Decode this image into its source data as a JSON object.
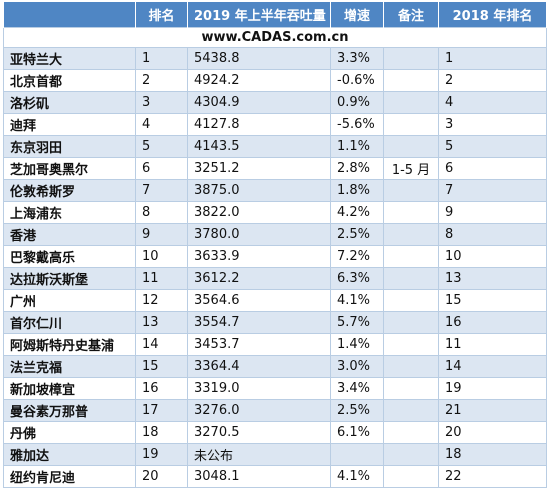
{
  "header": {
    "name": "",
    "rank": "排名",
    "volume": "2019 年上半年吞吐量",
    "growth": "增速",
    "note": "备注",
    "prev_rank": "2018 年排名"
  },
  "watermark": "www.CADAS.com.cn",
  "rows": [
    {
      "name": "亚特兰大",
      "rank": "1",
      "volume": "5438.8",
      "growth": "3.3%",
      "note": "",
      "prev": "1"
    },
    {
      "name": "北京首都",
      "rank": "2",
      "volume": "4924.2",
      "growth": "-0.6%",
      "note": "",
      "prev": "2"
    },
    {
      "name": "洛杉矶",
      "rank": "3",
      "volume": "4304.9",
      "growth": "0.9%",
      "note": "",
      "prev": "4"
    },
    {
      "name": "迪拜",
      "rank": "4",
      "volume": "4127.8",
      "growth": "-5.6%",
      "note": "",
      "prev": "3"
    },
    {
      "name": "东京羽田",
      "rank": "5",
      "volume": "4143.5",
      "growth": "1.1%",
      "note": "",
      "prev": "5"
    },
    {
      "name": "芝加哥奥黑尔",
      "rank": "6",
      "volume": "3251.2",
      "growth": "2.8%",
      "note": "1-5 月",
      "prev": "6"
    },
    {
      "name": "伦敦希斯罗",
      "rank": "7",
      "volume": "3875.0",
      "growth": "1.8%",
      "note": "",
      "prev": "7"
    },
    {
      "name": "上海浦东",
      "rank": "8",
      "volume": "3822.0",
      "growth": "4.2%",
      "note": "",
      "prev": "9"
    },
    {
      "name": "香港",
      "rank": "9",
      "volume": "3780.0",
      "growth": "2.5%",
      "note": "",
      "prev": "8"
    },
    {
      "name": "巴黎戴高乐",
      "rank": "10",
      "volume": "3633.9",
      "growth": "7.2%",
      "note": "",
      "prev": "10"
    },
    {
      "name": "达拉斯沃斯堡",
      "rank": "11",
      "volume": "3612.2",
      "growth": "6.3%",
      "note": "",
      "prev": "13"
    },
    {
      "name": "广州",
      "rank": "12",
      "volume": "3564.6",
      "growth": "4.1%",
      "note": "",
      "prev": "15"
    },
    {
      "name": "首尔仁川",
      "rank": "13",
      "volume": "3554.7",
      "growth": "5.7%",
      "note": "",
      "prev": "16"
    },
    {
      "name": "阿姆斯特丹史基浦",
      "rank": "14",
      "volume": "3453.7",
      "growth": "1.4%",
      "note": "",
      "prev": "11"
    },
    {
      "name": "法兰克福",
      "rank": "15",
      "volume": "3364.4",
      "growth": "3.0%",
      "note": "",
      "prev": "14"
    },
    {
      "name": "新加坡樟宜",
      "rank": "16",
      "volume": "3319.0",
      "growth": "3.4%",
      "note": "",
      "prev": "19"
    },
    {
      "name": "曼谷素万那普",
      "rank": "17",
      "volume": "3276.0",
      "growth": "2.5%",
      "note": "",
      "prev": "21"
    },
    {
      "name": "丹佛",
      "rank": "18",
      "volume": "3270.5",
      "growth": "6.1%",
      "note": "",
      "prev": "20"
    },
    {
      "name": "雅加达",
      "rank": "19",
      "volume": "未公布",
      "growth": "",
      "note": "",
      "prev": "18"
    },
    {
      "name": "纽约肯尼迪",
      "rank": "20",
      "volume": "3048.1",
      "growth": "4.1%",
      "note": "",
      "prev": "22"
    }
  ]
}
